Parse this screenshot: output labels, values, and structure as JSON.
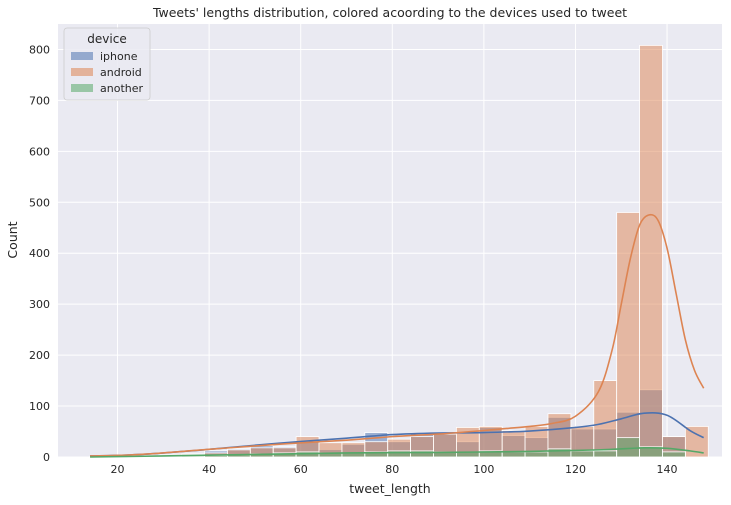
{
  "chart_data": {
    "type": "histogram",
    "title": "Tweets' lengths distribution, colored acoording to the devices used to tweet",
    "xlabel": "tweet_length",
    "ylabel": "Count",
    "xlim": [
      7,
      152
    ],
    "ylim": [
      0,
      850
    ],
    "x_ticks": [
      20,
      40,
      60,
      80,
      100,
      120,
      140
    ],
    "y_ticks": [
      0,
      100,
      200,
      300,
      400,
      500,
      600,
      700,
      800
    ],
    "grid": true,
    "legend": {
      "title": "device",
      "placement": "top-left"
    },
    "bin_edges": [
      14,
      19,
      24,
      29,
      34,
      39,
      44,
      49,
      54,
      59,
      64,
      69,
      74,
      79,
      84,
      89,
      94,
      99,
      104,
      109,
      114,
      119,
      124,
      129,
      134,
      139,
      144,
      149
    ],
    "series": [
      {
        "name": "iphone",
        "color": "#4c72b0",
        "counts": [
          1,
          1,
          2,
          4,
          6,
          12,
          16,
          22,
          20,
          30,
          15,
          25,
          48,
          30,
          45,
          45,
          30,
          58,
          42,
          38,
          78,
          55,
          55,
          88,
          132,
          40,
          0
        ],
        "kde_x": [
          14,
          25,
          40,
          55,
          70,
          80,
          90,
          100,
          110,
          120,
          125,
          130,
          135,
          140,
          145,
          148
        ],
        "kde_y": [
          2,
          5,
          15,
          27,
          37,
          44,
          47,
          48,
          51,
          58,
          64,
          75,
          86,
          82,
          52,
          38
        ]
      },
      {
        "name": "android",
        "color": "#dd8452",
        "counts": [
          0,
          0,
          1,
          3,
          5,
          8,
          14,
          18,
          18,
          40,
          28,
          28,
          30,
          35,
          40,
          45,
          58,
          60,
          52,
          60,
          85,
          60,
          150,
          480,
          808,
          40,
          60
        ],
        "kde_x": [
          14,
          25,
          40,
          55,
          70,
          80,
          90,
          100,
          105,
          110,
          115,
          120,
          125,
          128,
          130,
          132,
          134,
          136,
          138,
          140,
          142,
          144,
          146,
          148
        ],
        "kde_y": [
          2,
          5,
          15,
          25,
          33,
          40,
          45,
          52,
          56,
          60,
          66,
          80,
          128,
          210,
          300,
          390,
          455,
          475,
          465,
          410,
          320,
          230,
          170,
          135
        ]
      },
      {
        "name": "another",
        "color": "#55a868",
        "counts": [
          0,
          0,
          0,
          1,
          2,
          3,
          4,
          6,
          8,
          10,
          8,
          8,
          10,
          12,
          12,
          10,
          10,
          12,
          10,
          10,
          16,
          12,
          12,
          38,
          20,
          10,
          0
        ],
        "kde_x": [
          14,
          30,
          50,
          70,
          90,
          110,
          125,
          135,
          140,
          145,
          148
        ],
        "kde_y": [
          0,
          2,
          5,
          8,
          9,
          11,
          14,
          18,
          17,
          12,
          8
        ]
      }
    ]
  }
}
